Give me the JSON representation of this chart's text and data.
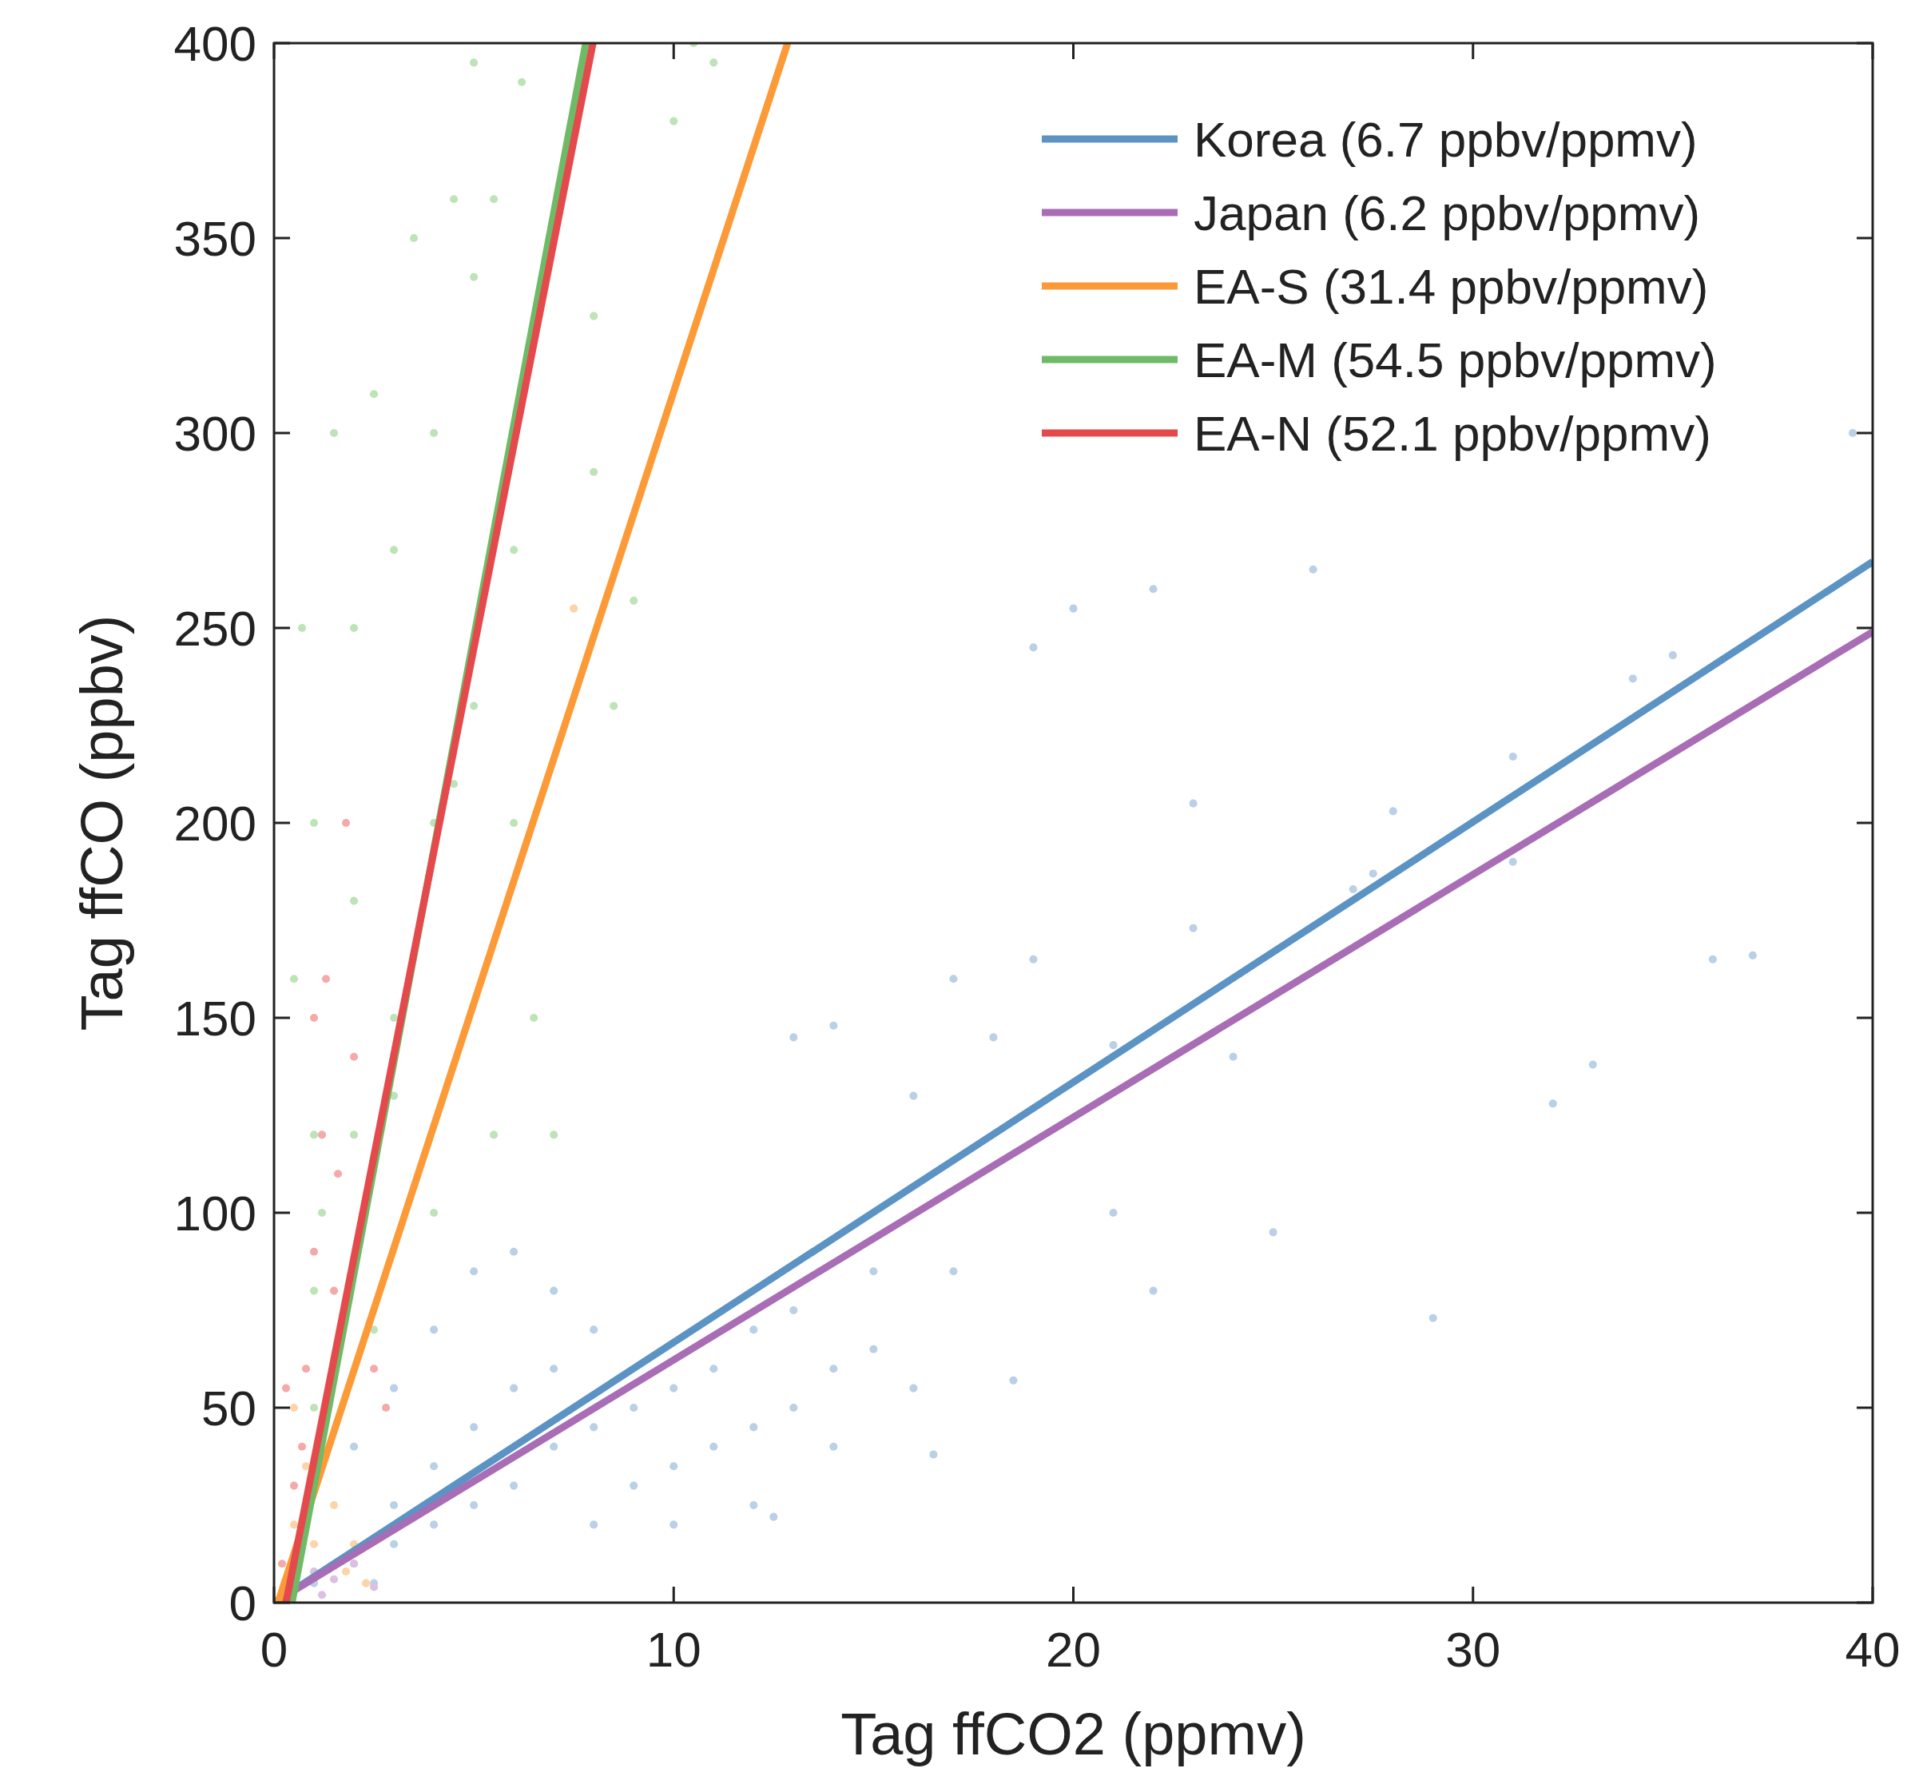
{
  "chart_data": {
    "type": "scatter",
    "xlabel": "Tag ffCO2 (ppmv)",
    "ylabel": "Tag ffCO (ppbv)",
    "xlim": [
      0,
      40
    ],
    "ylim": [
      0,
      400
    ],
    "xticks": [
      0,
      10,
      20,
      30,
      40
    ],
    "yticks": [
      0,
      50,
      100,
      150,
      200,
      250,
      300,
      350,
      400
    ],
    "grid": false,
    "legend": "top right",
    "series": [
      {
        "type": "scatter",
        "marker": "circle",
        "color": "#b9d0e6",
        "x": [
          1,
          2,
          3,
          3,
          4,
          4,
          5,
          5,
          6,
          6,
          7,
          7,
          8,
          8,
          9,
          9,
          10,
          10,
          11,
          11,
          12,
          12,
          13,
          13,
          14,
          15,
          16,
          5,
          6,
          7,
          3,
          2,
          4,
          2.5,
          8,
          10,
          12,
          12.5,
          14,
          15,
          17,
          16.5,
          18.5,
          13,
          14,
          16,
          18,
          17,
          19,
          21,
          22,
          25,
          23,
          26,
          27,
          29,
          31,
          32,
          33,
          34,
          35,
          36,
          37,
          39.5,
          22,
          20,
          19,
          27.5,
          24,
          28,
          31,
          23,
          21
        ],
        "values": [
          5,
          10,
          15,
          25,
          20,
          35,
          25,
          45,
          30,
          55,
          40,
          60,
          45,
          70,
          50,
          30,
          55,
          35,
          60,
          40,
          70,
          45,
          75,
          50,
          60,
          65,
          55,
          85,
          90,
          80,
          55,
          40,
          70,
          5,
          20,
          20,
          25,
          22,
          40,
          85,
          85,
          38,
          57,
          145,
          148,
          130,
          145,
          160,
          165,
          100,
          80,
          95,
          205,
          265,
          183,
          73,
          217,
          128,
          138,
          237,
          243,
          165,
          166,
          300,
          260,
          255,
          245,
          187,
          140,
          203,
          190,
          173,
          143
        ]
      },
      {
        "type": "scatter",
        "marker": "circle",
        "color": "#dcc0e0",
        "x": [
          1,
          1.5,
          2,
          1.2,
          2.5
        ],
        "values": [
          8,
          6,
          10,
          2,
          4
        ]
      },
      {
        "type": "scatter",
        "marker": "circle",
        "color": "#fdd3a8",
        "x": [
          0.5,
          0.8,
          1,
          1.5,
          2,
          2.3,
          0.5,
          1.8,
          7.5
        ],
        "values": [
          20,
          35,
          15,
          25,
          15,
          5,
          50,
          8,
          255
        ]
      },
      {
        "type": "scatter",
        "marker": "circle",
        "color": "#bfe3b8",
        "x": [
          0.5,
          0.7,
          1,
          1,
          1.5,
          2,
          2,
          2.5,
          3,
          3,
          3.5,
          4,
          4,
          4.5,
          5,
          5,
          5.5,
          6,
          6,
          5.5,
          7,
          6.5,
          8,
          9,
          10,
          10.5,
          11,
          5,
          1,
          2.5,
          4,
          3,
          6.2,
          8,
          8.5,
          4.5,
          2,
          1,
          1.2
        ],
        "values": [
          160,
          250,
          200,
          120,
          300,
          180,
          250,
          310,
          150,
          270,
          350,
          200,
          300,
          360,
          230,
          340,
          360,
          270,
          200,
          120,
          120,
          150,
          330,
          257,
          380,
          400,
          395,
          395,
          50,
          70,
          100,
          130,
          390,
          290,
          230,
          210,
          120,
          80,
          100
        ]
      },
      {
        "type": "scatter",
        "marker": "circle",
        "color": "#f5aaaa",
        "x": [
          0.2,
          0.5,
          0.8,
          1,
          1.2,
          1.3,
          1.5,
          1.8,
          2,
          2.5,
          2.8,
          1,
          0.7,
          1.6,
          0.3
        ],
        "values": [
          10,
          30,
          60,
          90,
          120,
          160,
          80,
          200,
          140,
          60,
          50,
          150,
          40,
          110,
          55
        ]
      },
      {
        "type": "line",
        "marker": "none",
        "name": "Korea (6.7 ppbv/ppmv)",
        "color": "#5b93c4",
        "x": [
          0,
          40
        ],
        "values": [
          0,
          267
        ]
      },
      {
        "type": "line",
        "marker": "none",
        "name": "Japan (6.2 ppbv/ppmv)",
        "color": "#a96db5",
        "x": [
          0,
          40
        ],
        "values": [
          0,
          249
        ]
      },
      {
        "type": "line",
        "marker": "none",
        "name": "EA-S (31.4 ppbv/ppmv)",
        "color": "#fd9a38",
        "x": [
          0.1,
          12.85
        ],
        "values": [
          0,
          400
        ]
      },
      {
        "type": "line",
        "marker": "none",
        "name": "EA-M (54.5 ppbv/ppmv)",
        "color": "#6fba67",
        "x": [
          0.45,
          7.8
        ],
        "values": [
          0,
          400
        ]
      },
      {
        "type": "line",
        "marker": "none",
        "name": "EA-N (52.1 ppbv/ppmv)",
        "color": "#e44a4c",
        "x": [
          0.3,
          7.98
        ],
        "values": [
          0,
          400
        ]
      }
    ]
  }
}
